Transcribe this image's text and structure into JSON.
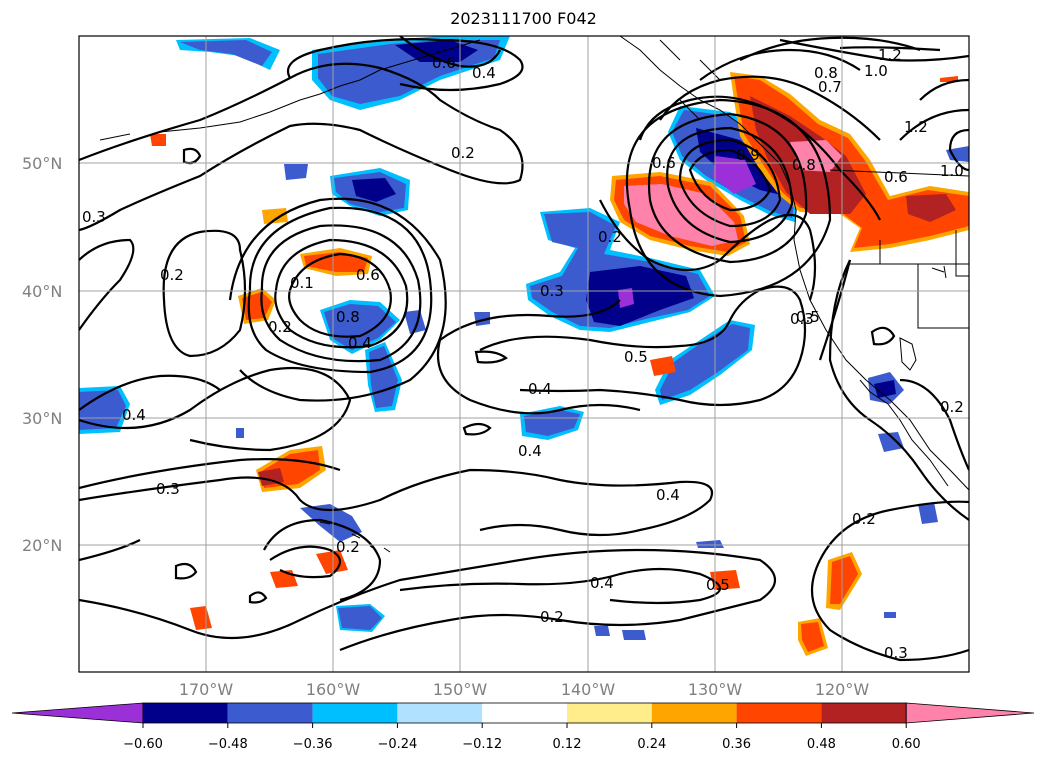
{
  "title": "2023111700 F042",
  "latitude_labels": [
    "50°N",
    "40°N",
    "30°N",
    "20°N"
  ],
  "longitude_labels": [
    "170°W",
    "160°W",
    "150°W",
    "140°W",
    "130°W",
    "120°W"
  ],
  "colorbar": {
    "tick_labels": [
      "−0.60",
      "−0.48",
      "−0.36",
      "−0.24",
      "−0.12",
      "0.12",
      "0.24",
      "0.36",
      "0.48",
      "0.60"
    ],
    "colors": [
      "#9b30d9",
      "#00008b",
      "#3b5bcf",
      "#00bfff",
      "#b0e2ff",
      "#ffffff",
      "#ffec8b",
      "#ffa500",
      "#ff4500",
      "#b22222",
      "#ff82ab"
    ]
  },
  "contour_labels": [
    "1.2",
    "1.0",
    "0.8",
    "0.7",
    "0.6",
    "0.4",
    "0.2",
    "0.3",
    "0.2",
    "0.6",
    "0.2",
    "0.8",
    "0.9",
    "0.6",
    "1.0",
    "1.2",
    "0.3",
    "0.2",
    "0.1",
    "0.6",
    "0.8",
    "0.4",
    "0.3",
    "0.5",
    "0.4",
    "0.4",
    "0.4",
    "0.3",
    "0.2",
    "0.4",
    "0.5",
    "0.2",
    "0.2",
    "0.3",
    "0.5",
    "0.2",
    "0.4"
  ]
}
